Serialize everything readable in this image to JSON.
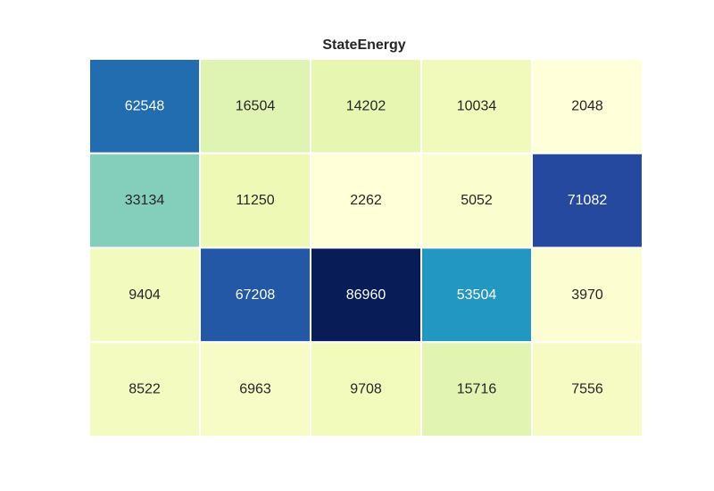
{
  "chart_data": {
    "type": "heatmap",
    "title": "StateEnergy",
    "xlabel": "",
    "ylabel": "",
    "colormap": "YlGnBu",
    "vmin": 2048,
    "vmax": 86960,
    "grid": true,
    "values": [
      [
        62548,
        16504,
        14202,
        10034,
        2048
      ],
      [
        33134,
        11250,
        2262,
        5052,
        71082
      ],
      [
        9404,
        67208,
        86960,
        53504,
        3970
      ],
      [
        8522,
        6963,
        9708,
        15716,
        7556
      ]
    ]
  }
}
